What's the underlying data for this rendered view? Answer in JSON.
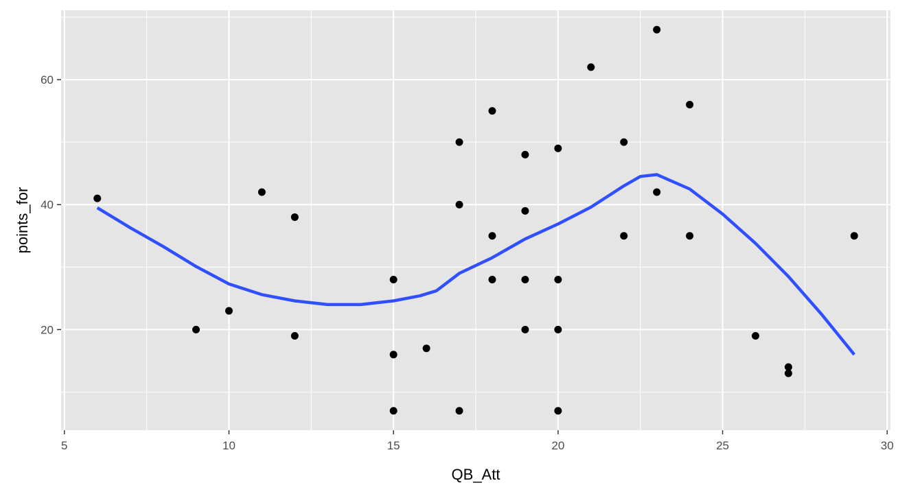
{
  "chart_data": {
    "type": "scatter",
    "xlabel": "QB_Att",
    "ylabel": "points_for",
    "xlim": [
      4.9,
      30.1
    ],
    "ylim": [
      3.9,
      71.1
    ],
    "x_ticks": [
      5,
      10,
      15,
      20,
      25,
      30
    ],
    "x_tick_labels": [
      "5",
      "10",
      "15",
      "20",
      "25",
      "30"
    ],
    "x_minor_ticks": [
      7.5,
      12.5,
      17.5,
      22.5,
      27.5
    ],
    "y_ticks": [
      20,
      40,
      60
    ],
    "y_tick_labels": [
      "20",
      "40",
      "60"
    ],
    "y_minor_ticks": [
      10,
      30,
      50,
      70
    ],
    "grid": true,
    "legend": "none",
    "panel_background": "#e5e5e5",
    "grid_color": "#ffffff",
    "point_color": "#000000",
    "smooth_color": "#3050ff",
    "points": [
      {
        "x": 6,
        "y": 41
      },
      {
        "x": 9,
        "y": 20
      },
      {
        "x": 10,
        "y": 23
      },
      {
        "x": 11,
        "y": 42
      },
      {
        "x": 12,
        "y": 38
      },
      {
        "x": 12,
        "y": 19
      },
      {
        "x": 15,
        "y": 28
      },
      {
        "x": 15,
        "y": 16
      },
      {
        "x": 15,
        "y": 7
      },
      {
        "x": 16,
        "y": 17
      },
      {
        "x": 17,
        "y": 50
      },
      {
        "x": 17,
        "y": 40
      },
      {
        "x": 17,
        "y": 7
      },
      {
        "x": 18,
        "y": 55
      },
      {
        "x": 18,
        "y": 35
      },
      {
        "x": 18,
        "y": 28
      },
      {
        "x": 19,
        "y": 48
      },
      {
        "x": 19,
        "y": 39
      },
      {
        "x": 19,
        "y": 28
      },
      {
        "x": 19,
        "y": 20
      },
      {
        "x": 20,
        "y": 49
      },
      {
        "x": 20,
        "y": 28
      },
      {
        "x": 20,
        "y": 20
      },
      {
        "x": 20,
        "y": 7
      },
      {
        "x": 21,
        "y": 62
      },
      {
        "x": 22,
        "y": 50
      },
      {
        "x": 22,
        "y": 35
      },
      {
        "x": 23,
        "y": 68
      },
      {
        "x": 23,
        "y": 42
      },
      {
        "x": 24,
        "y": 56
      },
      {
        "x": 24,
        "y": 35
      },
      {
        "x": 26,
        "y": 19
      },
      {
        "x": 27,
        "y": 14
      },
      {
        "x": 27,
        "y": 13
      },
      {
        "x": 29,
        "y": 35
      }
    ],
    "smooth_line": [
      {
        "x": 6,
        "y": 39.5
      },
      {
        "x": 7,
        "y": 36.3
      },
      {
        "x": 8,
        "y": 33.3
      },
      {
        "x": 9,
        "y": 30.1
      },
      {
        "x": 10,
        "y": 27.3
      },
      {
        "x": 11,
        "y": 25.6
      },
      {
        "x": 12,
        "y": 24.6
      },
      {
        "x": 13,
        "y": 24.0
      },
      {
        "x": 14,
        "y": 24.0
      },
      {
        "x": 15,
        "y": 24.6
      },
      {
        "x": 15.8,
        "y": 25.4
      },
      {
        "x": 16.3,
        "y": 26.2
      },
      {
        "x": 17,
        "y": 29.0
      },
      {
        "x": 18,
        "y": 31.5
      },
      {
        "x": 19,
        "y": 34.5
      },
      {
        "x": 20,
        "y": 36.9
      },
      {
        "x": 21,
        "y": 39.6
      },
      {
        "x": 22,
        "y": 43.0
      },
      {
        "x": 22.5,
        "y": 44.5
      },
      {
        "x": 23,
        "y": 44.8
      },
      {
        "x": 24,
        "y": 42.5
      },
      {
        "x": 25,
        "y": 38.5
      },
      {
        "x": 26,
        "y": 33.8
      },
      {
        "x": 27,
        "y": 28.5
      },
      {
        "x": 28,
        "y": 22.5
      },
      {
        "x": 29,
        "y": 16.0
      }
    ]
  }
}
